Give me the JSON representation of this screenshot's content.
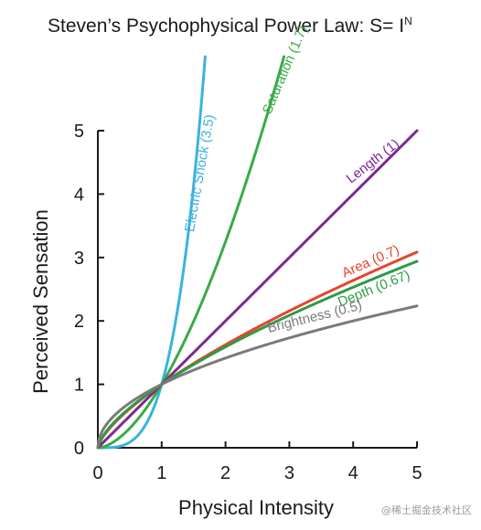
{
  "chart_data": {
    "type": "line",
    "title": "Steven’s Psychophysical Power Law: S= I",
    "title_superscript": "N",
    "xlabel": "Physical Intensity",
    "ylabel": "Perceived Sensation",
    "xlim": [
      0,
      5
    ],
    "ylim": [
      0,
      5
    ],
    "xticks": [
      "0",
      "1",
      "2",
      "3",
      "4",
      "5"
    ],
    "yticks": [
      "0",
      "1",
      "2",
      "3",
      "4",
      "5"
    ],
    "grid": false,
    "legend": "inline labels",
    "series": [
      {
        "name": "Electric Shock (3.5)",
        "exponent": 3.5,
        "color": "#3bb3dd"
      },
      {
        "name": "Saturation (1.7)",
        "exponent": 1.7,
        "color": "#3aaa48"
      },
      {
        "name": "Length (1)",
        "exponent": 1.0,
        "color": "#7b2a90"
      },
      {
        "name": "Area (0.7)",
        "exponent": 0.7,
        "color": "#e8432c"
      },
      {
        "name": "Depth (0.67)",
        "exponent": 0.67,
        "color": "#2e9a45"
      },
      {
        "name": "Brightness (0.5)",
        "exponent": 0.5,
        "color": "#7a7a7a"
      }
    ]
  },
  "watermark": "@稀土掘金技术社区"
}
